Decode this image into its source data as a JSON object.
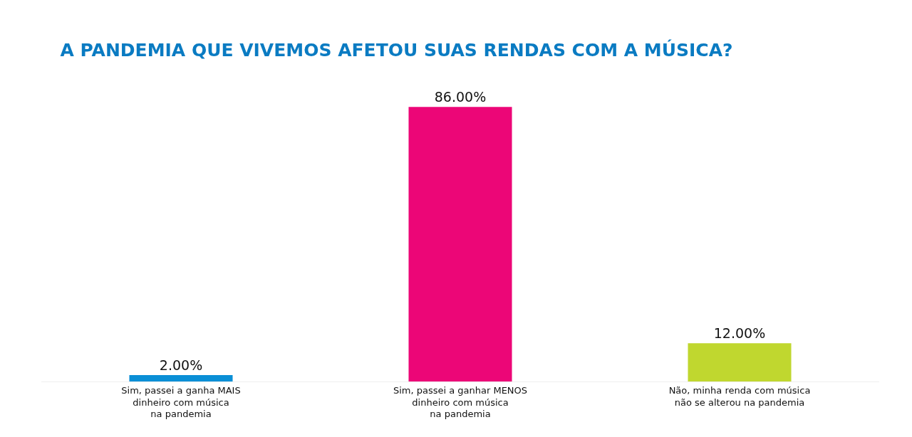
{
  "chart_data": {
    "type": "bar",
    "title": "A PANDEMIA QUE VIVEMOS AFETOU SUAS RENDAS COM A MÚSICA?",
    "categories": [
      "Sim, passei a ganha MAIS\ndinheiro com música\nna pandemia",
      "Sim, passei a ganhar MENOS\ndinheiro com música\nna pandemia",
      "Não, minha renda com música\nnão se alterou na pandemia"
    ],
    "values": [
      2,
      86,
      12
    ],
    "colors": [
      "#0a8fd6",
      "#ec0677",
      "#c0d72f"
    ],
    "value_labels": [
      "2.00%",
      "86.00%",
      "12.00%"
    ],
    "grid": false
  }
}
